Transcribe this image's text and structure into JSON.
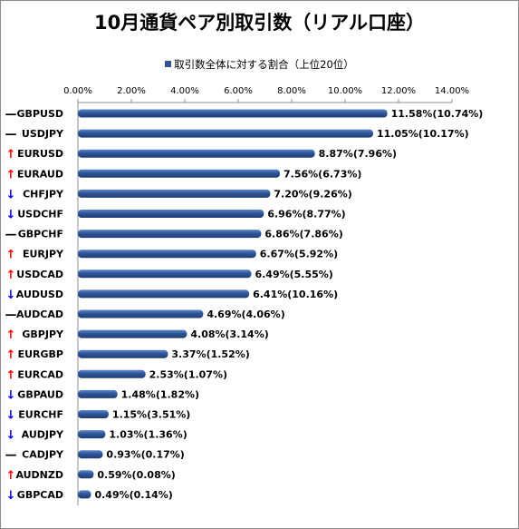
{
  "title": "10月通貨ペア別取引数（リアル口座）",
  "legend_label": "取引数全体に対する割合（上位20位）",
  "colors": {
    "bar": "#2f5597",
    "up": "#ff0000",
    "down": "#0000ff",
    "flat": "#000000"
  },
  "chart_data": {
    "type": "bar",
    "orientation": "horizontal",
    "title": "10月通貨ペア別取引数（リアル口座）",
    "legend": [
      "取引数全体に対する割合（上位20位）"
    ],
    "legend_position": "top",
    "xlim": [
      0,
      14
    ],
    "x_ticks": [
      "0.00%",
      "2.00%",
      "4.00%",
      "6.00%",
      "8.00%",
      "10.00%",
      "12.00%",
      "14.00%"
    ],
    "grid": false,
    "series": [
      {
        "name": "取引数全体に対する割合（上位20位）",
        "categories": [
          "GBPUSD",
          "USDJPY",
          "EURUSD",
          "EURAUD",
          "CHFJPY",
          "USDCHF",
          "GBPCHF",
          "EURJPY",
          "USDCAD",
          "AUDUSD",
          "AUDCAD",
          "GBPJPY",
          "EURGBP",
          "EURCAD",
          "GBPAUD",
          "EURCHF",
          "AUDJPY",
          "CADJPY",
          "AUDNZD",
          "GBPCAD"
        ],
        "values": [
          11.58,
          11.05,
          8.87,
          7.56,
          7.2,
          6.96,
          6.86,
          6.67,
          6.49,
          6.41,
          4.69,
          4.08,
          3.37,
          2.53,
          1.48,
          1.15,
          1.03,
          0.93,
          0.59,
          0.49
        ],
        "previous_values": [
          10.74,
          10.17,
          7.96,
          6.73,
          9.26,
          8.77,
          7.86,
          5.92,
          5.55,
          10.16,
          4.06,
          3.14,
          1.52,
          1.07,
          1.82,
          3.51,
          1.36,
          0.17,
          0.08,
          0.14
        ],
        "data_labels": [
          "11.58%(10.74%)",
          "11.05%(10.17%)",
          "8.87%(7.96%)",
          "7.56%(6.73%)",
          "7.20%(9.26%)",
          "6.96%(8.77%)",
          "6.86%(7.86%)",
          "6.67%(5.92%)",
          "6.49%(5.55%)",
          "6.41%(10.16%)",
          "4.69%(4.06%)",
          "4.08%(3.14%)",
          "3.37%(1.52%)",
          "2.53%(1.07%)",
          "1.48%(1.82%)",
          "1.15%(3.51%)",
          "1.03%(1.36%)",
          "0.93%(0.17%)",
          "0.59%(0.08%)",
          "0.49%(0.14%)"
        ],
        "trend_markers": [
          "—",
          "—",
          "↑",
          "↑",
          "↓",
          "↓",
          "—",
          "↑",
          "↑",
          "↓",
          "—",
          "↑",
          "↑",
          "↑",
          "↓",
          "↓",
          "↓",
          "—",
          "↑",
          "↓"
        ]
      }
    ]
  }
}
